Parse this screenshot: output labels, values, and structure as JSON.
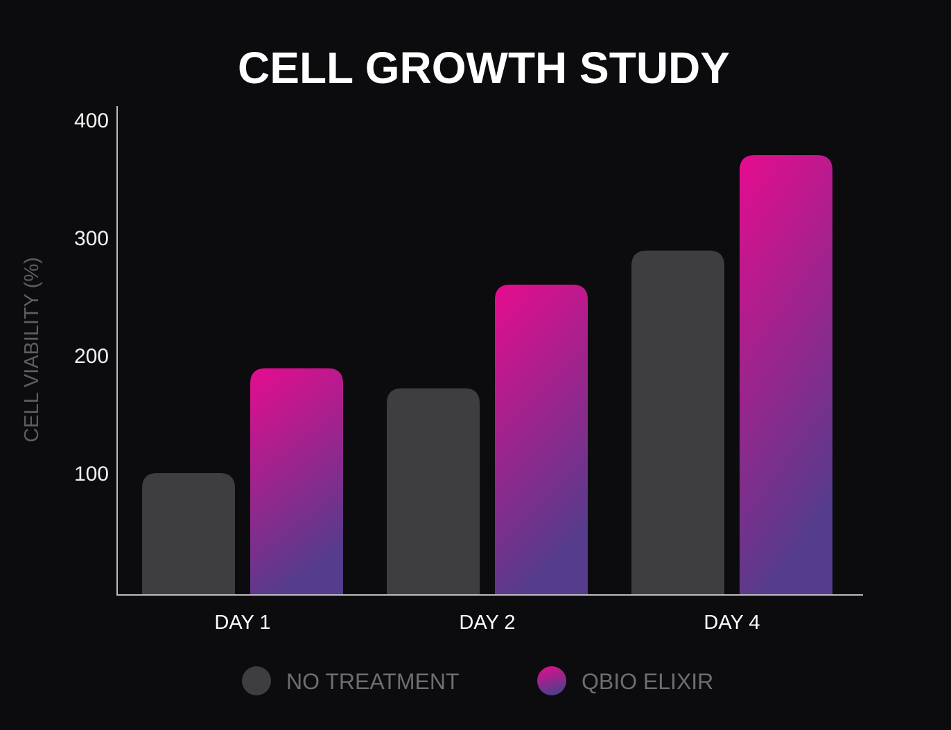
{
  "chart_data": {
    "type": "bar",
    "title": "CELL GROWTH STUDY",
    "xlabel": "",
    "ylabel": "CELL VIABILITY (%)",
    "ylim": [
      0,
      400
    ],
    "yticks": [
      100,
      200,
      300,
      400
    ],
    "categories": [
      "DAY 1",
      "DAY 2",
      "DAY 4"
    ],
    "series": [
      {
        "name": "NO TREATMENT",
        "values": [
          100,
          172,
          289
        ],
        "color": "#3e3d40"
      },
      {
        "name": "QBIO ELIXIR",
        "values": [
          189,
          260,
          370
        ],
        "color": "#e00d8f",
        "color_end": "#5a3a8c"
      }
    ],
    "grid": false,
    "legend": "bottom"
  }
}
